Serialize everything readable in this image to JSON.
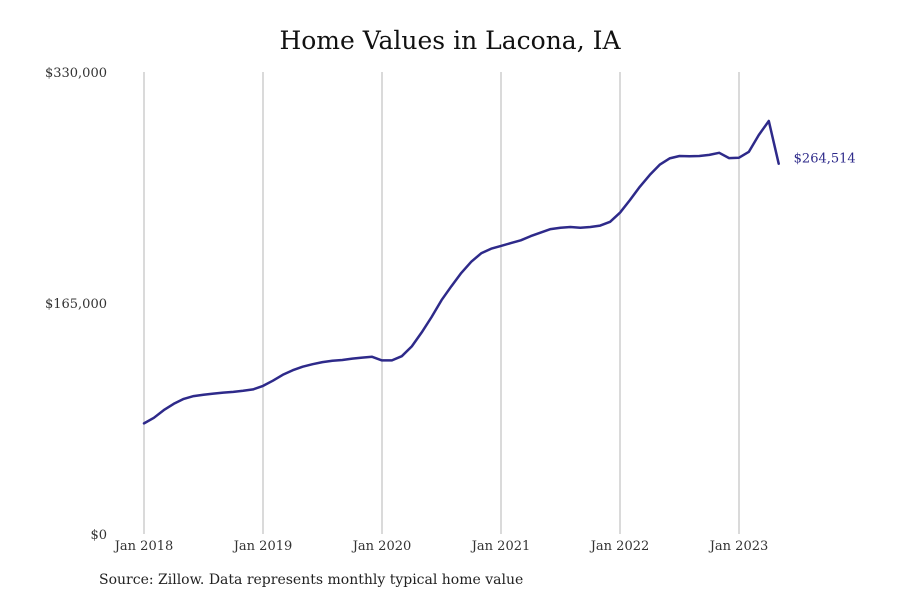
{
  "chart_data": {
    "type": "line",
    "title": "Home Values in Lacona, IA",
    "ylim": [
      0,
      330000
    ],
    "y_ticks": [
      {
        "value": 0,
        "label": "$0"
      },
      {
        "value": 165000,
        "label": "$165,000"
      },
      {
        "value": 330000,
        "label": "$330,000"
      }
    ],
    "x_ticks": [
      {
        "date": "2018-01",
        "label": "Jan 2018"
      },
      {
        "date": "2019-01",
        "label": "Jan 2019"
      },
      {
        "date": "2020-01",
        "label": "Jan 2020"
      },
      {
        "date": "2021-01",
        "label": "Jan 2021"
      },
      {
        "date": "2022-01",
        "label": "Jan 2022"
      },
      {
        "date": "2023-01",
        "label": "Jan 2023"
      }
    ],
    "grid": "vertical",
    "line_color": "#2e2a8a",
    "end_label": "$264,514",
    "series": [
      {
        "x": [
          "2018-01",
          "2018-02",
          "2018-03",
          "2018-04",
          "2018-05",
          "2018-06",
          "2018-07",
          "2018-08",
          "2018-09",
          "2018-10",
          "2018-11",
          "2018-12",
          "2019-01",
          "2019-02",
          "2019-03",
          "2019-04",
          "2019-05",
          "2019-06",
          "2019-07",
          "2019-08",
          "2019-09",
          "2019-10",
          "2019-11",
          "2019-12",
          "2020-01",
          "2020-02",
          "2020-03",
          "2020-04",
          "2020-05",
          "2020-06",
          "2020-07",
          "2020-08",
          "2020-09",
          "2020-10",
          "2020-11",
          "2020-12",
          "2021-01",
          "2021-02",
          "2021-03",
          "2021-04",
          "2021-05",
          "2021-06",
          "2021-07",
          "2021-08",
          "2021-09",
          "2021-10",
          "2021-11",
          "2021-12",
          "2022-01",
          "2022-02",
          "2022-03",
          "2022-04",
          "2022-05",
          "2022-06",
          "2022-07",
          "2022-08",
          "2022-09",
          "2022-10",
          "2022-11",
          "2022-12",
          "2023-01",
          "2023-02",
          "2023-03",
          "2023-04",
          "2023-05"
        ],
        "y": [
          79000,
          83000,
          88500,
          93000,
          96500,
          98500,
          99500,
          100300,
          101000,
          101500,
          102300,
          103300,
          105800,
          109500,
          113700,
          117000,
          119500,
          121300,
          122800,
          123800,
          124300,
          125300,
          126000,
          126600,
          124000,
          124000,
          127000,
          134000,
          144000,
          155000,
          167000,
          177000,
          186500,
          194500,
          200500,
          203800,
          205800,
          207800,
          209800,
          212800,
          215300,
          217800,
          218800,
          219300,
          218800,
          219300,
          220300,
          223000,
          229500,
          238500,
          248000,
          256500,
          263800,
          268300,
          270000,
          269800,
          270000,
          270800,
          272300,
          268500,
          268800,
          273000,
          285000,
          295000,
          264514
        ]
      }
    ]
  },
  "source_note": "Source: Zillow. Data represents monthly typical home value"
}
